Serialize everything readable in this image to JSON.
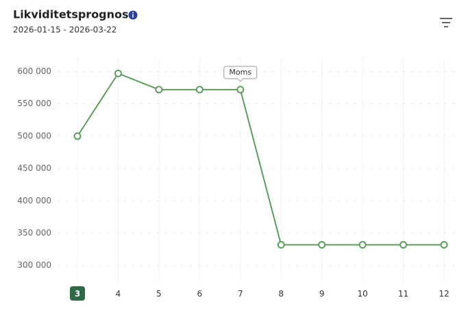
{
  "chart_data": {
    "type": "line",
    "title": "Likviditetsprognos",
    "subtitle": "2026-01-15 - 2026-03-22",
    "categories": [
      "3",
      "4",
      "5",
      "6",
      "7",
      "8",
      "9",
      "10",
      "11",
      "12"
    ],
    "selected_category": "3",
    "series": [
      {
        "color": "#5a9e5a",
        "values": [
          500000,
          597000,
          572000,
          572000,
          572000,
          332000,
          332000,
          332000,
          332000,
          332000
        ]
      }
    ],
    "annotations": [
      {
        "label": "Moms",
        "category": "7"
      }
    ],
    "ylim": [
      280000,
      620000
    ],
    "yticks": [
      {
        "value": 300000,
        "label": "300 000"
      },
      {
        "value": 350000,
        "label": "350 000"
      },
      {
        "value": 400000,
        "label": "400 000"
      },
      {
        "value": 450000,
        "label": "450 000"
      },
      {
        "value": 500000,
        "label": "500 000"
      },
      {
        "value": 550000,
        "label": "550 000"
      },
      {
        "value": 600000,
        "label": "600 000"
      }
    ],
    "grid": true
  }
}
